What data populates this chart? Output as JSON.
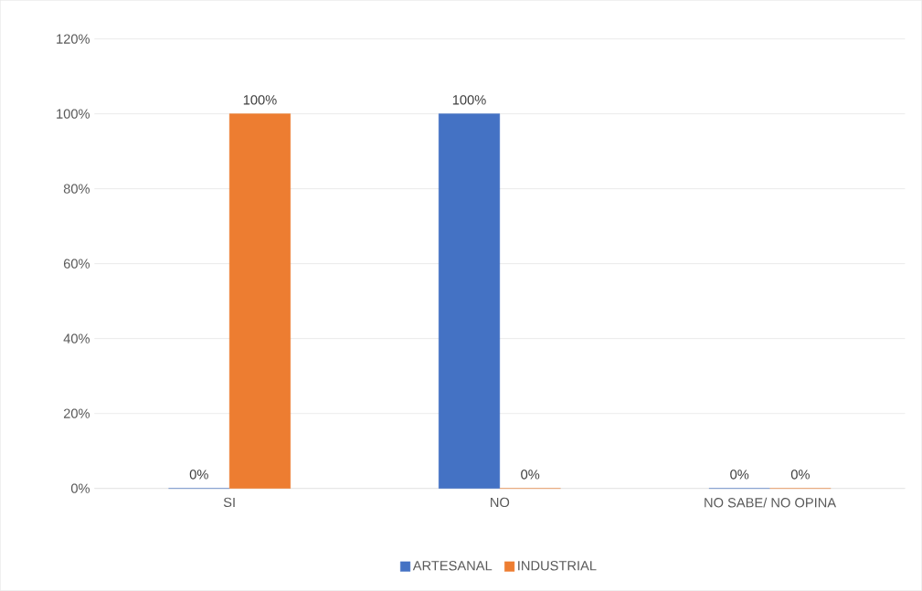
{
  "chart_data": {
    "type": "bar",
    "categories": [
      "SI",
      "NO",
      "NO SABE/ NO OPINA"
    ],
    "series": [
      {
        "name": "ARTESANAL",
        "color": "#4472c4",
        "values": [
          0,
          100,
          0
        ],
        "value_labels": [
          "0%",
          "100%",
          "0%"
        ]
      },
      {
        "name": "INDUSTRIAL",
        "color": "#ed7d31",
        "values": [
          100,
          0,
          0
        ],
        "value_labels": [
          "100%",
          "0%",
          "0%"
        ]
      }
    ],
    "ylim": [
      0,
      120
    ],
    "yticks": [
      {
        "value": 0,
        "label": "0%"
      },
      {
        "value": 20,
        "label": "20%"
      },
      {
        "value": 40,
        "label": "40%"
      },
      {
        "value": 60,
        "label": "60%"
      },
      {
        "value": 80,
        "label": "80%"
      },
      {
        "value": 100,
        "label": "100%"
      },
      {
        "value": 120,
        "label": "120%"
      }
    ],
    "grid": "y",
    "legend": "bottom"
  }
}
